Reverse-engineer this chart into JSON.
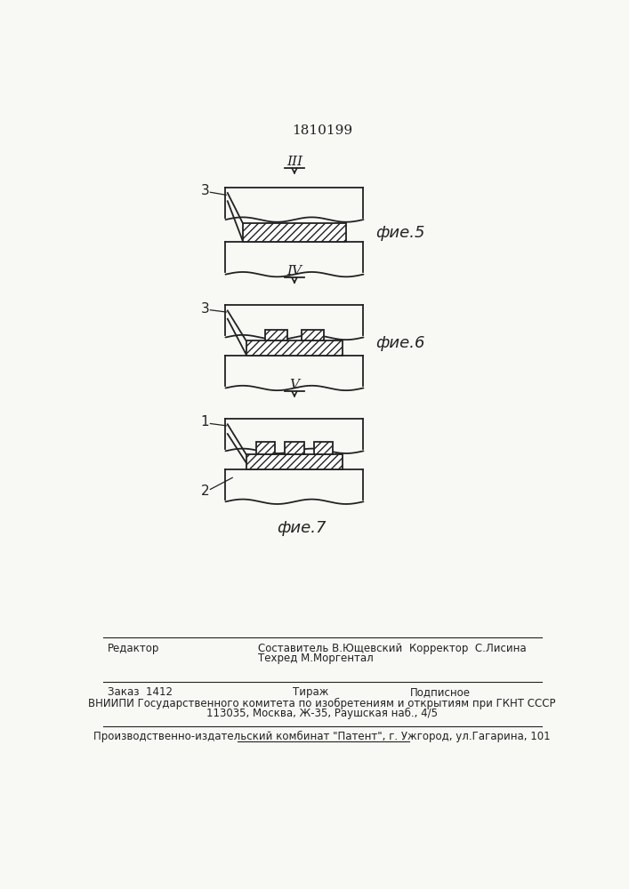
{
  "title": "1810199",
  "fig5_label": "фие.5",
  "fig6_label": "фие.6",
  "fig7_label": "фие.7",
  "roman3": "III",
  "roman4": "IV",
  "roman5": "V",
  "label3": "3",
  "label1": "1",
  "label2": "2",
  "footer_line1": "Составитель В.Ющевский",
  "footer_line2": "Техред М.Моргентал",
  "footer_editor": "Редактор",
  "footer_corrector": "Корректор  С.Лисина",
  "footer_order": "Заказ  1412",
  "footer_tirazh": "Тираж",
  "footer_podpisnoe": "Подписное",
  "footer_vniipи": "ВНИИПИ Государственного комитета по изобретениям и открытиям при ГКНТ СССР",
  "footer_address": "113035, Москва, Ж-35, Раушская наб., 4/5",
  "footer_factory": "Производственно-издательский комбинат \"Патент\", г. Ужгород, ул.Гагарина, 101",
  "bg_color": "#f8f8f5",
  "line_color": "#222222"
}
